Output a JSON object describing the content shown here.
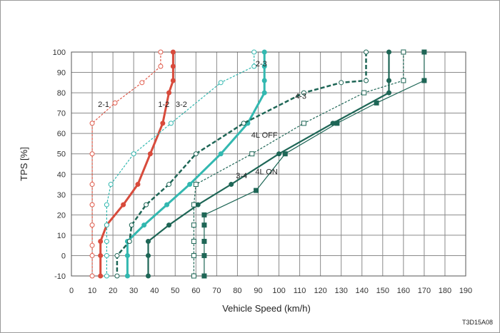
{
  "chart_data": {
    "type": "line",
    "title": "",
    "xlabel": "Vehicle Speed (km/h)",
    "ylabel": "TPS [%]",
    "xlim": [
      0,
      190
    ],
    "ylim": [
      -10,
      100
    ],
    "xticks": [
      0,
      10,
      20,
      30,
      40,
      50,
      60,
      70,
      80,
      90,
      100,
      110,
      120,
      130,
      140,
      150,
      160,
      170,
      180,
      190
    ],
    "yticks": [
      -10,
      0,
      10,
      20,
      30,
      40,
      50,
      60,
      70,
      80,
      90,
      100
    ],
    "grid": true,
    "figure_code": "T3D15A08",
    "series": [
      {
        "name": "2-1",
        "color": "#e05a4a",
        "dash": "3,2",
        "marker": "open-circle",
        "width": 1.2,
        "points": [
          [
            43,
            100
          ],
          [
            43,
            93
          ],
          [
            34,
            85
          ],
          [
            21,
            75
          ],
          [
            10,
            65
          ],
          [
            10,
            50
          ],
          [
            10,
            35
          ],
          [
            10,
            25
          ],
          [
            10,
            15
          ],
          [
            10,
            5
          ],
          [
            10,
            0
          ],
          [
            10,
            -10
          ]
        ]
      },
      {
        "name": "1-2",
        "color": "#d84b3c",
        "dash": "",
        "marker": "filled-circle",
        "width": 3,
        "points": [
          [
            49,
            100
          ],
          [
            49,
            93
          ],
          [
            49,
            86
          ],
          [
            47,
            80
          ],
          [
            44,
            65
          ],
          [
            38,
            50
          ],
          [
            32,
            35
          ],
          [
            25,
            25
          ],
          [
            17,
            15
          ],
          [
            14,
            7
          ],
          [
            14,
            0
          ],
          [
            14,
            -10
          ]
        ]
      },
      {
        "name": "2-3",
        "color": "#33b8b0",
        "dash": "",
        "marker": "filled-circle",
        "width": 3,
        "points": [
          [
            93,
            100
          ],
          [
            93,
            93
          ],
          [
            93,
            86
          ],
          [
            93,
            80
          ],
          [
            85,
            65
          ],
          [
            72,
            50
          ],
          [
            57,
            35
          ],
          [
            46,
            25
          ],
          [
            35,
            15
          ],
          [
            27,
            7
          ],
          [
            27,
            0
          ],
          [
            27,
            -10
          ]
        ]
      },
      {
        "name": "3-2",
        "color": "#33b8b0",
        "dash": "3,2",
        "marker": "open-circle",
        "width": 1.2,
        "points": [
          [
            88,
            100
          ],
          [
            88,
            93
          ],
          [
            72,
            85
          ],
          [
            48,
            65
          ],
          [
            30,
            50
          ],
          [
            19,
            35
          ],
          [
            17,
            25
          ],
          [
            17,
            15
          ],
          [
            17,
            7
          ],
          [
            17,
            0
          ],
          [
            17,
            -10
          ]
        ]
      },
      {
        "name": "3-4",
        "color": "#1e6656",
        "dash": "",
        "marker": "filled-circle",
        "width": 2.2,
        "points": [
          [
            153,
            100
          ],
          [
            153,
            86
          ],
          [
            153,
            80
          ],
          [
            126,
            65
          ],
          [
            100,
            50
          ],
          [
            77,
            35
          ],
          [
            61,
            25
          ],
          [
            47,
            15
          ],
          [
            37,
            7
          ],
          [
            37,
            0
          ],
          [
            37,
            -10
          ]
        ]
      },
      {
        "name": "4-3",
        "color": "#1e6656",
        "dash": "6,3",
        "marker": "open-circle",
        "width": 2.5,
        "points": [
          [
            142,
            100
          ],
          [
            142,
            86
          ],
          [
            130,
            85
          ],
          [
            112,
            80
          ],
          [
            83,
            65
          ],
          [
            60,
            50
          ],
          [
            47,
            35
          ],
          [
            36,
            25
          ],
          [
            29,
            15
          ],
          [
            28,
            7
          ],
          [
            22,
            0
          ],
          [
            22,
            -10
          ]
        ]
      },
      {
        "name": "4L OFF",
        "color": "#1e6656",
        "dash": "3,2",
        "marker": "open-square",
        "width": 1.2,
        "points": [
          [
            160,
            100
          ],
          [
            160,
            86
          ],
          [
            141,
            80
          ],
          [
            112,
            65
          ],
          [
            87,
            50
          ],
          [
            60,
            35
          ],
          [
            59,
            25
          ],
          [
            59,
            15
          ],
          [
            59,
            7
          ],
          [
            59,
            0
          ],
          [
            59,
            -10
          ]
        ]
      },
      {
        "name": "4L ON",
        "color": "#1e6656",
        "dash": "",
        "marker": "filled-square",
        "width": 1.2,
        "points": [
          [
            170,
            100
          ],
          [
            170,
            86
          ],
          [
            147,
            75
          ],
          [
            128,
            65
          ],
          [
            103,
            50
          ],
          [
            89,
            32
          ],
          [
            64,
            20
          ],
          [
            64,
            15
          ],
          [
            64,
            7
          ],
          [
            64,
            0
          ],
          [
            64,
            -10
          ]
        ]
      }
    ],
    "labels": [
      {
        "text": "2-1",
        "x": 15.5,
        "y": 73
      },
      {
        "text": "1-2",
        "x": 44.5,
        "y": 73
      },
      {
        "text": "3-2",
        "x": 53,
        "y": 73
      },
      {
        "text": "2-3",
        "x": 91.5,
        "y": 93
      },
      {
        "text": "4-3",
        "x": 110.5,
        "y": 77
      },
      {
        "text": "4L OFF",
        "x": 93,
        "y": 58
      },
      {
        "text": "4L ON",
        "x": 94,
        "y": 40
      },
      {
        "text": "3-4",
        "x": 82,
        "y": 38
      }
    ]
  }
}
